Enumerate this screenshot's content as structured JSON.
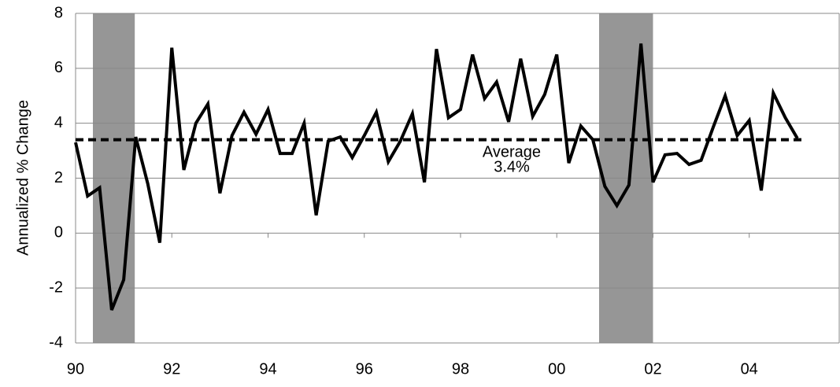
{
  "chart_data": {
    "type": "line",
    "y_label": "Annualized % Change",
    "xlim": [
      1990,
      2005.87
    ],
    "xticks": [
      {
        "value": 1990,
        "label": "90"
      },
      {
        "value": 1992,
        "label": "92"
      },
      {
        "value": 1994,
        "label": "94"
      },
      {
        "value": 1996,
        "label": "96"
      },
      {
        "value": 1998,
        "label": "98"
      },
      {
        "value": 2000,
        "label": "00"
      },
      {
        "value": 2002,
        "label": "02"
      },
      {
        "value": 2004,
        "label": "04"
      }
    ],
    "ylim": [
      -4,
      8
    ],
    "yticks": [
      -4,
      -2,
      0,
      2,
      4,
      6,
      8
    ],
    "grid": true,
    "shaded_color": "#969696",
    "shaded": [
      [
        1990.36,
        1991.23
      ],
      [
        2000.88,
        2002.0
      ]
    ],
    "x": [
      1990,
      1990.25,
      1990.5,
      1990.75,
      1991,
      1991.25,
      1991.5,
      1991.75,
      1992,
      1992.25,
      1992.5,
      1992.75,
      1993,
      1993.25,
      1993.5,
      1993.75,
      1994,
      1994.25,
      1994.5,
      1994.75,
      1995,
      1995.25,
      1995.5,
      1995.75,
      1996,
      1996.25,
      1996.5,
      1996.75,
      1997,
      1997.25,
      1997.5,
      1997.75,
      1998,
      1998.25,
      1998.5,
      1998.75,
      1999,
      1999.25,
      1999.5,
      1999.75,
      2000,
      2000.25,
      2000.5,
      2000.75,
      2001,
      2001.25,
      2001.5,
      2001.75,
      2002,
      2002.25,
      2002.5,
      2002.75,
      2003,
      2003.25,
      2003.5,
      2003.75,
      2004,
      2004.25,
      2004.5,
      2004.75,
      2005
    ],
    "series": [
      {
        "color": "#000000",
        "values": [
          3.3,
          1.35,
          1.65,
          -2.8,
          -1.7,
          3.5,
          1.8,
          -0.35,
          6.75,
          2.3,
          4.0,
          4.7,
          1.45,
          3.55,
          4.4,
          3.6,
          4.5,
          2.9,
          2.9,
          4.0,
          0.65,
          3.35,
          3.5,
          2.75,
          3.55,
          4.4,
          2.6,
          3.35,
          4.35,
          1.85,
          6.7,
          4.2,
          4.5,
          6.5,
          4.9,
          5.5,
          4.05,
          6.35,
          4.25,
          5.05,
          6.5,
          2.55,
          3.9,
          3.4,
          1.7,
          1.0,
          1.75,
          6.9,
          1.85,
          2.85,
          2.9,
          2.5,
          2.65,
          3.85,
          5.0,
          3.55,
          4.1,
          1.55,
          5.1,
          4.2,
          3.45
        ]
      }
    ],
    "average": {
      "label": "Average",
      "value": 3.4,
      "value_label": "3.4%"
    }
  }
}
